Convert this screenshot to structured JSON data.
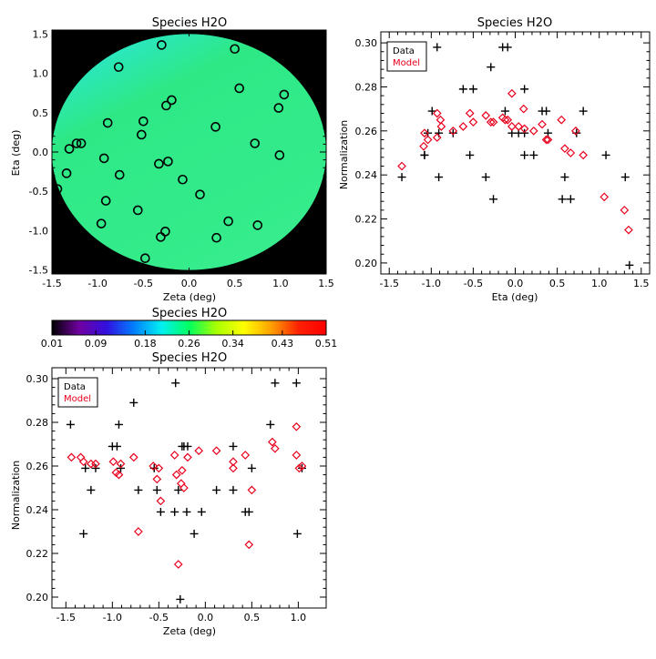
{
  "colors": {
    "background": "#ffffff",
    "axis": "#000000",
    "data_marker": "#000000",
    "model_marker": "#e8001c",
    "map_outside": "#000000",
    "map_field": "#2ee886",
    "map_field_edge": "#36ec8c"
  },
  "chart_data": [
    {
      "id": "field-map",
      "type": "scatter",
      "title": "Species H2O",
      "xlabel": "Zeta (deg)",
      "ylabel": "Eta (deg)",
      "xlim": [
        -1.5,
        1.5
      ],
      "ylim": [
        -1.55,
        1.55
      ],
      "xticks": [
        -1.5,
        -1.0,
        -0.5,
        0.0,
        0.5,
        1.0,
        1.5
      ],
      "xtick_labels": [
        "-1.5",
        "-1.0",
        "-0.5",
        "0.0",
        "0.5",
        "1.0",
        "1.5"
      ],
      "yticks": [
        -1.5,
        -1.0,
        -0.5,
        0.0,
        0.5,
        1.0,
        1.5
      ],
      "ytick_labels": [
        "-1.5",
        "-1.0",
        "-0.5",
        "0.0",
        "0.5",
        "1.0",
        "1.5"
      ],
      "field_radius_deg": 1.5,
      "stars": [
        {
          "zeta": -0.3,
          "eta": 1.36
        },
        {
          "zeta": 0.5,
          "eta": 1.31
        },
        {
          "zeta": -0.77,
          "eta": 1.08
        },
        {
          "zeta": 0.55,
          "eta": 0.81
        },
        {
          "zeta": 1.04,
          "eta": 0.73
        },
        {
          "zeta": -0.19,
          "eta": 0.66
        },
        {
          "zeta": -0.25,
          "eta": 0.59
        },
        {
          "zeta": 0.98,
          "eta": 0.56
        },
        {
          "zeta": -0.5,
          "eta": 0.39
        },
        {
          "zeta": -0.89,
          "eta": 0.37
        },
        {
          "zeta": 0.29,
          "eta": 0.32
        },
        {
          "zeta": -0.52,
          "eta": 0.22
        },
        {
          "zeta": 0.72,
          "eta": 0.11
        },
        {
          "zeta": -1.18,
          "eta": 0.11
        },
        {
          "zeta": -1.23,
          "eta": 0.11
        },
        {
          "zeta": -1.31,
          "eta": 0.04
        },
        {
          "zeta": 0.99,
          "eta": -0.04
        },
        {
          "zeta": -0.93,
          "eta": -0.08
        },
        {
          "zeta": -0.23,
          "eta": -0.12
        },
        {
          "zeta": -0.33,
          "eta": -0.15
        },
        {
          "zeta": -1.34,
          "eta": -0.27
        },
        {
          "zeta": -0.76,
          "eta": -0.29
        },
        {
          "zeta": -0.07,
          "eta": -0.35
        },
        {
          "zeta": 0.12,
          "eta": -0.54
        },
        {
          "zeta": -1.44,
          "eta": -0.47
        },
        {
          "zeta": -0.91,
          "eta": -0.62
        },
        {
          "zeta": -0.56,
          "eta": -0.74
        },
        {
          "zeta": 0.43,
          "eta": -0.88
        },
        {
          "zeta": -0.96,
          "eta": -0.91
        },
        {
          "zeta": 0.75,
          "eta": -0.93
        },
        {
          "zeta": -0.26,
          "eta": -1.01
        },
        {
          "zeta": -0.31,
          "eta": -1.08
        },
        {
          "zeta": 0.3,
          "eta": -1.09
        },
        {
          "zeta": -0.48,
          "eta": -1.35
        }
      ]
    },
    {
      "id": "eta-plot",
      "type": "scatter",
      "title": "Species H2O",
      "xlabel": "Eta (deg)",
      "ylabel": "Normalization",
      "xlim": [
        -1.6,
        1.6
      ],
      "ylim": [
        0.195,
        0.305
      ],
      "xticks": [
        -1.5,
        -1.0,
        -0.5,
        0.0,
        0.5,
        1.0,
        1.5
      ],
      "xtick_labels": [
        "-1.5",
        "-1.0",
        "-0.5",
        "0.0",
        "0.5",
        "1.0",
        "1.5"
      ],
      "yticks": [
        0.2,
        0.22,
        0.24,
        0.26,
        0.28,
        0.3
      ],
      "ytick_labels": [
        "0.20",
        "0.22",
        "0.24",
        "0.26",
        "0.28",
        "0.30"
      ],
      "legend": {
        "position": "top-left",
        "entries": [
          "Data",
          "Model"
        ]
      },
      "series": [
        {
          "name": "Data",
          "marker": "plus",
          "points": [
            [
              -1.35,
              0.239
            ],
            [
              -1.08,
              0.249
            ],
            [
              -1.08,
              0.249
            ],
            [
              -1.04,
              0.259
            ],
            [
              -0.99,
              0.269
            ],
            [
              -0.93,
              0.298
            ],
            [
              -0.91,
              0.239
            ],
            [
              -0.91,
              0.259
            ],
            [
              -0.74,
              0.259
            ],
            [
              -0.62,
              0.279
            ],
            [
              -0.54,
              0.249
            ],
            [
              -0.5,
              0.279
            ],
            [
              -0.35,
              0.239
            ],
            [
              -0.29,
              0.289
            ],
            [
              -0.26,
              0.229
            ],
            [
              -0.15,
              0.298
            ],
            [
              -0.12,
              0.269
            ],
            [
              -0.09,
              0.298
            ],
            [
              -0.04,
              0.259
            ],
            [
              0.04,
              0.259
            ],
            [
              0.11,
              0.249
            ],
            [
              0.11,
              0.279
            ],
            [
              0.11,
              0.259
            ],
            [
              0.22,
              0.249
            ],
            [
              0.32,
              0.269
            ],
            [
              0.37,
              0.269
            ],
            [
              0.39,
              0.259
            ],
            [
              0.56,
              0.229
            ],
            [
              0.59,
              0.239
            ],
            [
              0.66,
              0.229
            ],
            [
              0.73,
              0.259
            ],
            [
              0.81,
              0.269
            ],
            [
              1.08,
              0.249
            ],
            [
              1.31,
              0.239
            ],
            [
              1.36,
              0.199
            ]
          ]
        },
        {
          "name": "Model",
          "marker": "diamond",
          "points": [
            [
              -1.35,
              0.244
            ],
            [
              -1.09,
              0.253
            ],
            [
              -1.08,
              0.259
            ],
            [
              -1.04,
              0.256
            ],
            [
              -0.93,
              0.257
            ],
            [
              -0.93,
              0.268
            ],
            [
              -0.89,
              0.265
            ],
            [
              -0.88,
              0.262
            ],
            [
              -0.74,
              0.26
            ],
            [
              -0.62,
              0.262
            ],
            [
              -0.54,
              0.268
            ],
            [
              -0.5,
              0.264
            ],
            [
              -0.35,
              0.267
            ],
            [
              -0.29,
              0.264
            ],
            [
              -0.26,
              0.264
            ],
            [
              -0.15,
              0.266
            ],
            [
              -0.12,
              0.265
            ],
            [
              -0.09,
              0.265
            ],
            [
              -0.04,
              0.262
            ],
            [
              -0.04,
              0.277
            ],
            [
              0.04,
              0.262
            ],
            [
              0.1,
              0.27
            ],
            [
              0.11,
              0.261
            ],
            [
              0.22,
              0.26
            ],
            [
              0.32,
              0.263
            ],
            [
              0.37,
              0.256
            ],
            [
              0.39,
              0.256
            ],
            [
              0.55,
              0.265
            ],
            [
              0.59,
              0.252
            ],
            [
              0.66,
              0.25
            ],
            [
              0.72,
              0.26
            ],
            [
              0.81,
              0.249
            ],
            [
              1.06,
              0.23
            ],
            [
              1.3,
              0.224
            ],
            [
              1.35,
              0.215
            ]
          ]
        }
      ]
    },
    {
      "id": "colorbar",
      "type": "heatmap",
      "title": "Species H2O",
      "range": [
        0.01,
        0.51
      ],
      "ticks": [
        0.01,
        0.09,
        0.18,
        0.26,
        0.34,
        0.43,
        0.51
      ],
      "tick_labels": [
        "0.01",
        "0.09",
        "0.18",
        "0.26",
        "0.34",
        "0.43",
        "0.51"
      ],
      "colormap": [
        "#000000",
        "#7000a0",
        "#3010e0",
        "#0080ff",
        "#00f0f0",
        "#00ff60",
        "#a8ff00",
        "#ffff00",
        "#ffa000",
        "#ff2000",
        "#ff0000"
      ]
    },
    {
      "id": "zeta-plot",
      "type": "scatter",
      "title": "Species H2O",
      "xlabel": "Zeta (deg)",
      "ylabel": "Normalization",
      "xlim": [
        -1.65,
        1.3
      ],
      "ylim": [
        0.195,
        0.305
      ],
      "xticks": [
        -1.5,
        -1.0,
        -0.5,
        0.0,
        0.5,
        1.0
      ],
      "xtick_labels": [
        "-1.5",
        "-1.0",
        "-0.5",
        "0.0",
        "0.5",
        "1.0"
      ],
      "yticks": [
        0.2,
        0.22,
        0.24,
        0.26,
        0.28,
        0.3
      ],
      "ytick_labels": [
        "0.20",
        "0.22",
        "0.24",
        "0.26",
        "0.28",
        "0.30"
      ],
      "legend": {
        "position": "top-left",
        "entries": [
          "Data",
          "Model"
        ]
      },
      "series": [
        {
          "name": "Data",
          "marker": "plus",
          "points": [
            [
              -1.45,
              0.279
            ],
            [
              -1.31,
              0.229
            ],
            [
              -1.29,
              0.259
            ],
            [
              -1.23,
              0.249
            ],
            [
              -1.18,
              0.259
            ],
            [
              -1.0,
              0.269
            ],
            [
              -0.95,
              0.269
            ],
            [
              -0.93,
              0.279
            ],
            [
              -0.91,
              0.259
            ],
            [
              -0.77,
              0.289
            ],
            [
              -0.72,
              0.249
            ],
            [
              -0.55,
              0.259
            ],
            [
              -0.52,
              0.249
            ],
            [
              -0.48,
              0.239
            ],
            [
              -0.33,
              0.239
            ],
            [
              -0.32,
              0.298
            ],
            [
              -0.29,
              0.249
            ],
            [
              -0.27,
              0.199
            ],
            [
              -0.25,
              0.269
            ],
            [
              -0.23,
              0.269
            ],
            [
              -0.2,
              0.239
            ],
            [
              -0.19,
              0.269
            ],
            [
              -0.12,
              0.229
            ],
            [
              -0.04,
              0.239
            ],
            [
              0.12,
              0.249
            ],
            [
              0.3,
              0.269
            ],
            [
              0.3,
              0.249
            ],
            [
              0.43,
              0.239
            ],
            [
              0.47,
              0.239
            ],
            [
              0.5,
              0.259
            ],
            [
              0.7,
              0.279
            ],
            [
              0.75,
              0.298
            ],
            [
              0.98,
              0.298
            ],
            [
              0.99,
              0.229
            ],
            [
              1.04,
              0.259
            ]
          ]
        },
        {
          "name": "Model",
          "marker": "diamond",
          "points": [
            [
              -1.44,
              0.264
            ],
            [
              -1.34,
              0.264
            ],
            [
              -1.31,
              0.262
            ],
            [
              -1.23,
              0.261
            ],
            [
              -1.18,
              0.261
            ],
            [
              -0.99,
              0.262
            ],
            [
              -0.96,
              0.257
            ],
            [
              -0.93,
              0.256
            ],
            [
              -0.91,
              0.261
            ],
            [
              -0.77,
              0.264
            ],
            [
              -0.72,
              0.23
            ],
            [
              -0.56,
              0.26
            ],
            [
              -0.52,
              0.254
            ],
            [
              -0.5,
              0.259
            ],
            [
              -0.48,
              0.244
            ],
            [
              -0.33,
              0.265
            ],
            [
              -0.31,
              0.256
            ],
            [
              -0.29,
              0.215
            ],
            [
              -0.26,
              0.252
            ],
            [
              -0.25,
              0.258
            ],
            [
              -0.23,
              0.25
            ],
            [
              -0.19,
              0.264
            ],
            [
              -0.07,
              0.267
            ],
            [
              0.12,
              0.267
            ],
            [
              0.3,
              0.262
            ],
            [
              0.3,
              0.259
            ],
            [
              0.43,
              0.265
            ],
            [
              0.47,
              0.224
            ],
            [
              0.5,
              0.249
            ],
            [
              0.72,
              0.271
            ],
            [
              0.75,
              0.268
            ],
            [
              0.98,
              0.278
            ],
            [
              0.98,
              0.265
            ],
            [
              1.04,
              0.26
            ],
            [
              1.01,
              0.259
            ]
          ]
        }
      ]
    }
  ]
}
